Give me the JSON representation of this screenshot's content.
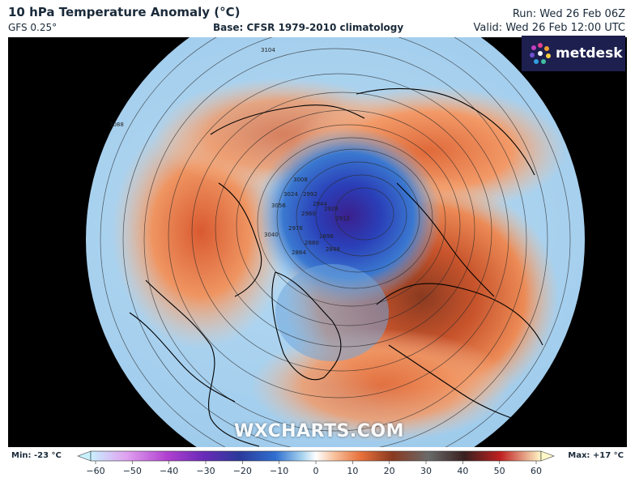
{
  "header": {
    "title": "10 hPa Temperature Anomaly (°C)",
    "model": "GFS 0.25°",
    "base": "Base: CFSR 1979-2010 climatology",
    "run": "Run: Wed 26 Feb 06Z",
    "valid": "Valid: Wed 26 Feb 12:00 UTC"
  },
  "brand": {
    "logo_text": "metdesk",
    "watermark": "WXCHARTS.COM"
  },
  "legend": {
    "min": "Min: -23 °C",
    "max": "Max: +17 °C",
    "ticks": [
      "−60",
      "−50",
      "−40",
      "−30",
      "−20",
      "−10",
      "0",
      "10",
      "20",
      "30",
      "40",
      "50",
      "60"
    ],
    "colors": {
      "cold_extreme": "#c8f0ff",
      "violet": "#8a2be2",
      "deep_blue": "#1f3fb0",
      "mid_blue": "#3a78d0",
      "light_blue": "#a8d4f0",
      "neutral": "#ffffff",
      "light_orange": "#f7b98c",
      "orange": "#e8703a",
      "brown": "#8a3a20",
      "dark_red": "#5a1010",
      "warm_extreme": "#fff8c8"
    }
  },
  "map": {
    "contour_labels": [
      "3088",
      "3104",
      "3056",
      "3040",
      "3024",
      "3008",
      "2992",
      "2976",
      "2960",
      "2944",
      "2928",
      "2912",
      "2896",
      "2880",
      "2864",
      "2848"
    ]
  }
}
